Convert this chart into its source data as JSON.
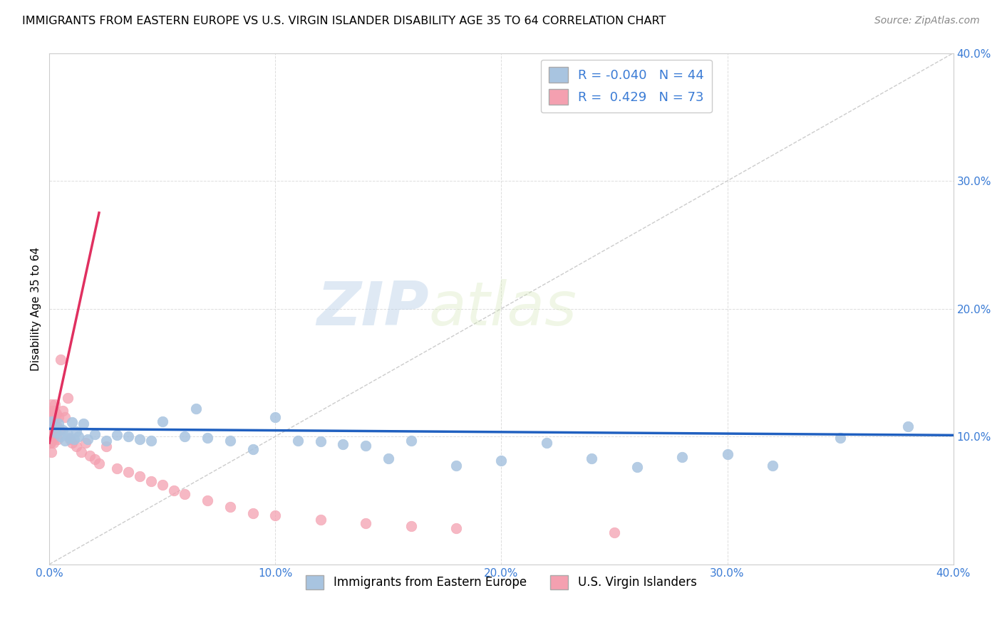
{
  "title": "IMMIGRANTS FROM EASTERN EUROPE VS U.S. VIRGIN ISLANDER DISABILITY AGE 35 TO 64 CORRELATION CHART",
  "source": "Source: ZipAtlas.com",
  "xlabel": "",
  "ylabel": "Disability Age 35 to 64",
  "xlim": [
    0.0,
    0.4
  ],
  "ylim": [
    0.0,
    0.4
  ],
  "x_ticks": [
    0.0,
    0.1,
    0.2,
    0.3,
    0.4
  ],
  "y_ticks": [
    0.0,
    0.1,
    0.2,
    0.3,
    0.4
  ],
  "x_tick_labels": [
    "0.0%",
    "10.0%",
    "20.0%",
    "30.0%",
    "40.0%"
  ],
  "y_tick_labels": [
    "",
    "10.0%",
    "20.0%",
    "30.0%",
    "40.0%"
  ],
  "legend_blue_r": "-0.040",
  "legend_blue_n": "44",
  "legend_pink_r": "0.429",
  "legend_pink_n": "73",
  "blue_color": "#a8c4e0",
  "pink_color": "#f4a0b0",
  "blue_line_color": "#2060c0",
  "pink_line_color": "#e03060",
  "diagonal_color": "#cccccc",
  "watermark_zip": "ZIP",
  "watermark_atlas": "atlas",
  "blue_scatter_x": [
    0.001,
    0.002,
    0.003,
    0.004,
    0.005,
    0.006,
    0.007,
    0.008,
    0.009,
    0.01,
    0.011,
    0.012,
    0.013,
    0.015,
    0.017,
    0.02,
    0.025,
    0.03,
    0.035,
    0.04,
    0.045,
    0.05,
    0.06,
    0.065,
    0.07,
    0.08,
    0.09,
    0.1,
    0.11,
    0.12,
    0.13,
    0.14,
    0.15,
    0.16,
    0.18,
    0.2,
    0.22,
    0.24,
    0.26,
    0.28,
    0.3,
    0.32,
    0.35,
    0.38
  ],
  "blue_scatter_y": [
    0.112,
    0.108,
    0.103,
    0.11,
    0.1,
    0.105,
    0.097,
    0.102,
    0.099,
    0.111,
    0.098,
    0.104,
    0.1,
    0.11,
    0.098,
    0.102,
    0.097,
    0.101,
    0.1,
    0.098,
    0.097,
    0.112,
    0.1,
    0.122,
    0.099,
    0.097,
    0.09,
    0.115,
    0.097,
    0.096,
    0.094,
    0.093,
    0.083,
    0.097,
    0.077,
    0.081,
    0.095,
    0.083,
    0.076,
    0.084,
    0.086,
    0.077,
    0.099,
    0.108
  ],
  "pink_scatter_x": [
    0.0002,
    0.0003,
    0.0003,
    0.0004,
    0.0004,
    0.0005,
    0.0005,
    0.0006,
    0.0006,
    0.0007,
    0.0007,
    0.0007,
    0.0008,
    0.0008,
    0.0009,
    0.0009,
    0.001,
    0.001,
    0.001,
    0.0011,
    0.0011,
    0.0012,
    0.0012,
    0.0013,
    0.0013,
    0.0014,
    0.0014,
    0.0015,
    0.0015,
    0.0016,
    0.0017,
    0.0018,
    0.0019,
    0.002,
    0.0021,
    0.0022,
    0.0023,
    0.0025,
    0.0027,
    0.003,
    0.0033,
    0.0036,
    0.004,
    0.0045,
    0.005,
    0.006,
    0.007,
    0.008,
    0.009,
    0.01,
    0.012,
    0.014,
    0.016,
    0.018,
    0.02,
    0.022,
    0.025,
    0.03,
    0.035,
    0.04,
    0.045,
    0.05,
    0.055,
    0.06,
    0.07,
    0.08,
    0.09,
    0.1,
    0.12,
    0.14,
    0.16,
    0.18,
    0.25
  ],
  "pink_scatter_y": [
    0.11,
    0.115,
    0.108,
    0.105,
    0.095,
    0.112,
    0.1,
    0.108,
    0.098,
    0.115,
    0.105,
    0.095,
    0.118,
    0.108,
    0.098,
    0.088,
    0.125,
    0.115,
    0.105,
    0.12,
    0.11,
    0.115,
    0.105,
    0.108,
    0.098,
    0.112,
    0.102,
    0.118,
    0.108,
    0.098,
    0.115,
    0.105,
    0.095,
    0.12,
    0.11,
    0.1,
    0.115,
    0.125,
    0.108,
    0.118,
    0.108,
    0.098,
    0.115,
    0.105,
    0.16,
    0.12,
    0.115,
    0.13,
    0.098,
    0.095,
    0.092,
    0.088,
    0.095,
    0.085,
    0.082,
    0.079,
    0.092,
    0.075,
    0.072,
    0.069,
    0.065,
    0.062,
    0.058,
    0.055,
    0.05,
    0.045,
    0.04,
    0.038,
    0.035,
    0.032,
    0.03,
    0.028,
    0.025
  ],
  "pink_line_x0": 0.0,
  "pink_line_y0": 0.095,
  "pink_line_x1": 0.022,
  "pink_line_y1": 0.275,
  "blue_line_x0": 0.0,
  "blue_line_y0": 0.106,
  "blue_line_x1": 0.4,
  "blue_line_y1": 0.101
}
